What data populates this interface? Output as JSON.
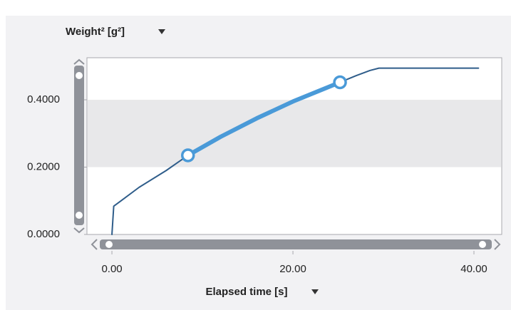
{
  "chart_data": {
    "type": "line",
    "y_label": "Weight² [g²]",
    "x_label": "Elapsed time [s]",
    "xlim": [
      -2.76,
      43.07
    ],
    "ylim": [
      0,
      0.525
    ],
    "xticks": [
      {
        "value": 0,
        "label": "0.00"
      },
      {
        "value": 20,
        "label": "20.00"
      },
      {
        "value": 40,
        "label": "40.00"
      }
    ],
    "yticks": [
      {
        "value": 0,
        "label": "0.0000"
      },
      {
        "value": 0.2,
        "label": "0.2000"
      },
      {
        "value": 0.4,
        "label": "0.4000"
      }
    ],
    "bands": true,
    "series": [
      {
        "color": "#2f5d8a",
        "width": 2,
        "x": [
          0,
          0.2,
          1,
          3,
          6,
          8.4,
          12,
          16,
          20,
          25.2,
          27,
          28.5,
          29.5,
          40.5
        ],
        "values": [
          0,
          0.084,
          0.1,
          0.14,
          0.19,
          0.235,
          0.29,
          0.345,
          0.395,
          0.452,
          0.472,
          0.487,
          0.494,
          0.494
        ]
      },
      {
        "color": "#4a9ad8",
        "width": 6,
        "x": [
          8.4,
          12,
          16,
          20,
          25.2
        ],
        "values": [
          0.235,
          0.29,
          0.345,
          0.395,
          0.452
        ]
      },
      {
        "color": "#4a9ad8",
        "markers": true,
        "x": [
          8.4,
          25.2
        ],
        "values": [
          0.235,
          0.452
        ]
      }
    ]
  }
}
